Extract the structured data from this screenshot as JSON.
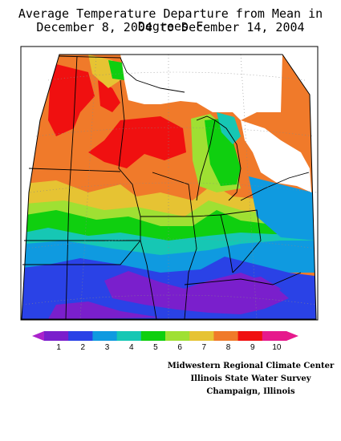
{
  "title": {
    "line1": "Average Temperature Departure from Mean in Degrees F",
    "line2": "December 8, 2004 to December 14, 2004"
  },
  "map": {
    "variable": "temperature departure",
    "units": "Degrees F",
    "region": "Midwestern United States",
    "bands": [
      {
        "label": "1",
        "color": "#7a1fcc"
      },
      {
        "label": "2",
        "color": "#2a42e6"
      },
      {
        "label": "3",
        "color": "#0f9ae0"
      },
      {
        "label": "4",
        "color": "#16c7b4"
      },
      {
        "label": "5",
        "color": "#0fcf0f"
      },
      {
        "label": "6",
        "color": "#9fe033"
      },
      {
        "label": "7",
        "color": "#e6c333"
      },
      {
        "label": "8",
        "color": "#f07a2a"
      },
      {
        "label": "9",
        "color": "#f01010"
      },
      {
        "label": "10",
        "color": "#e6198c"
      }
    ],
    "below_min_color": "#aa22cc",
    "above_max_color": "#e6198c"
  },
  "credits": {
    "line1": "Midwestern Regional Climate Center",
    "line2": "Illinois State Water Survey",
    "line3": "Champaign, Illinois"
  }
}
